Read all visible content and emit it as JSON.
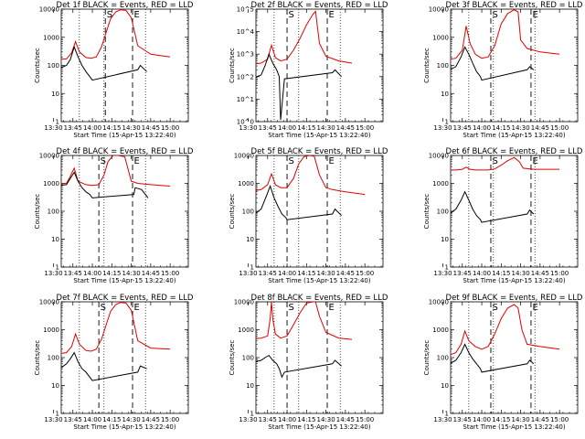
{
  "chart_data": [
    {
      "type": "line",
      "title": "Det 1f BLACK = Events, RED = LLD",
      "xlabel": "Start Time (15-Apr-15 13:22:40)",
      "ylabel": "Counts/sec",
      "yscale": "log",
      "ylim": [
        1,
        10000
      ],
      "xlim_minutes": [
        13.33,
        111.33
      ],
      "x_tick_labels": [
        "13:30",
        "13:45",
        "14:00",
        "14:15",
        "14:30",
        "14:45",
        "15:00"
      ],
      "y_tick_labels": [
        "1",
        "10",
        "100",
        "1000",
        "10000"
      ],
      "markers": [
        {
          "label": "S",
          "x": "14:10"
        },
        {
          "label": "E",
          "x": "14:31"
        }
      ],
      "series": [
        {
          "color": "#e00000",
          "x": [
            "13:30",
            "13:40",
            "13:44",
            "13:47",
            "13:50",
            "13:55",
            "13:59",
            "14:03",
            "14:07",
            "14:10",
            "14:14",
            "14:18",
            "14:22",
            "14:26",
            "14:30",
            "14:35",
            "14:45",
            "15:00"
          ],
          "values": [
            160,
            170,
            280,
            700,
            300,
            190,
            180,
            200,
            450,
            1200,
            4500,
            8000,
            9500,
            9000,
            5000,
            500,
            250,
            200
          ]
        },
        {
          "color": "#000000",
          "x": [
            "13:30",
            "13:35",
            "13:40",
            "13:43",
            "13:46",
            "13:49",
            "13:52",
            "13:55",
            "13:58",
            "14:00",
            "14:35",
            "14:37",
            "14:42"
          ],
          "values": [
            70,
            80,
            100,
            160,
            450,
            200,
            100,
            60,
            40,
            30,
            70,
            100,
            60
          ]
        }
      ]
    },
    {
      "type": "line",
      "title": "Det 2f BLACK = Events, RED = LLD",
      "xlabel": "Start Time (15-Apr-15 13:22:40)",
      "ylabel": "Counts/sec",
      "yscale": "log",
      "ylim": [
        1,
        100000
      ],
      "xlim_minutes": [
        13.33,
        111.33
      ],
      "x_tick_labels": [
        "13:30",
        "13:45",
        "14:00",
        "14:15",
        "14:30",
        "14:45",
        "15:00"
      ],
      "y_tick_labels": [
        "10^0",
        "10^1",
        "10^2",
        "10^3",
        "10^4",
        "10^5"
      ],
      "markers": [
        {
          "label": "S",
          "x": "14:00"
        },
        {
          "label": "E",
          "x": "14:31"
        }
      ],
      "series": [
        {
          "color": "#e00000",
          "x": [
            "13:30",
            "13:40",
            "13:45",
            "13:48",
            "13:51",
            "13:55",
            "14:00",
            "14:05",
            "14:10",
            "14:15",
            "14:20",
            "14:22",
            "14:25",
            "14:30",
            "14:40",
            "14:50"
          ],
          "values": [
            350,
            400,
            600,
            2500,
            700,
            500,
            600,
            1500,
            5000,
            20000,
            60000,
            80000,
            3000,
            800,
            500,
            400
          ]
        },
        {
          "color": "#000000",
          "x": [
            "13:30",
            "13:35",
            "13:40",
            "13:43",
            "13:46",
            "13:49",
            "13:52",
            "13:54",
            "13:55",
            "13:58",
            "14:35",
            "14:37",
            "14:42"
          ],
          "values": [
            80,
            90,
            120,
            300,
            1000,
            400,
            200,
            100,
            1.2,
            80,
            150,
            200,
            100
          ]
        }
      ]
    },
    {
      "type": "line",
      "title": "Det 3f BLACK = Events, RED = LLD",
      "xlabel": "Start Time (15-Apr-15 13:22:40)",
      "ylabel": "Counts/sec",
      "yscale": "log",
      "ylim": [
        1,
        10000
      ],
      "xlim_minutes": [
        13.33,
        111.33
      ],
      "x_tick_labels": [
        "13:30",
        "13:45",
        "14:00",
        "14:15",
        "14:30",
        "14:45",
        "15:00"
      ],
      "y_tick_labels": [
        "1",
        "10",
        "100",
        "1000",
        "10000"
      ],
      "markers": [
        {
          "label": "S",
          "x": "14:07"
        },
        {
          "label": "E",
          "x": "14:38"
        }
      ],
      "series": [
        {
          "color": "#e00000",
          "x": [
            "13:30",
            "13:40",
            "13:45",
            "13:48",
            "13:51",
            "13:55",
            "14:00",
            "14:05",
            "14:10",
            "14:15",
            "14:20",
            "14:25",
            "14:28",
            "14:30",
            "14:35",
            "14:45",
            "15:00"
          ],
          "values": [
            150,
            180,
            350,
            2500,
            600,
            250,
            180,
            200,
            500,
            3000,
            7000,
            9500,
            8000,
            800,
            400,
            300,
            250
          ]
        },
        {
          "color": "#000000",
          "x": [
            "13:30",
            "13:35",
            "13:40",
            "13:44",
            "13:47",
            "13:50",
            "13:53",
            "13:56",
            "13:59",
            "14:00",
            "14:35",
            "14:37",
            "14:40"
          ],
          "values": [
            60,
            70,
            90,
            200,
            450,
            250,
            120,
            60,
            40,
            30,
            70,
            90,
            70
          ]
        }
      ]
    },
    {
      "type": "line",
      "title": "Det 4f BLACK = Events, RED = LLD",
      "xlabel": "Start Time (15-Apr-15 13:22:40)",
      "ylabel": "Counts/sec",
      "yscale": "log",
      "ylim": [
        1,
        10000
      ],
      "xlim_minutes": [
        13.33,
        111.33
      ],
      "x_tick_labels": [
        "13:30",
        "13:45",
        "14:00",
        "14:15",
        "14:30",
        "14:45",
        "15:00"
      ],
      "y_tick_labels": [
        "1",
        "10",
        "100",
        "1000",
        "10000"
      ],
      "markers": [
        {
          "label": "S",
          "x": "14:05"
        },
        {
          "label": "E",
          "x": "14:31"
        }
      ],
      "series": [
        {
          "color": "#e00000",
          "x": [
            "13:30",
            "13:40",
            "13:43",
            "13:46",
            "13:49",
            "13:55",
            "14:00",
            "14:05",
            "14:09",
            "14:12",
            "14:16",
            "14:20",
            "14:25",
            "14:30",
            "14:35",
            "14:45",
            "15:00"
          ],
          "values": [
            950,
            1000,
            1800,
            3500,
            1200,
            900,
            850,
            900,
            2000,
            6000,
            10000,
            10000,
            9000,
            1200,
            1000,
            900,
            800
          ]
        },
        {
          "color": "#000000",
          "x": [
            "13:30",
            "13:35",
            "13:40",
            "13:43",
            "13:46",
            "13:49",
            "13:52",
            "13:55",
            "13:58",
            "14:00",
            "14:32",
            "14:33",
            "14:38",
            "14:43"
          ],
          "values": [
            800,
            850,
            900,
            1500,
            2500,
            1200,
            700,
            500,
            400,
            300,
            400,
            700,
            600,
            300
          ]
        }
      ]
    },
    {
      "type": "line",
      "title": "Det 5f BLACK = Events, RED = LLD",
      "xlabel": "Start Time (15-Apr-15 13:22:40)",
      "ylabel": "Counts/sec",
      "yscale": "log",
      "ylim": [
        1,
        10000
      ],
      "xlim_minutes": [
        13.33,
        111.33
      ],
      "x_tick_labels": [
        "13:30",
        "13:45",
        "14:00",
        "14:15",
        "14:30",
        "14:45",
        "15:00"
      ],
      "y_tick_labels": [
        "1",
        "10",
        "100",
        "1000",
        "10000"
      ],
      "markers": [
        {
          "label": "S",
          "x": "14:00"
        },
        {
          "label": "E",
          "x": "14:31"
        }
      ],
      "series": [
        {
          "color": "#e00000",
          "x": [
            "13:30",
            "13:40",
            "13:45",
            "13:48",
            "13:51",
            "13:55",
            "14:00",
            "14:05",
            "14:09",
            "14:13",
            "14:17",
            "14:21",
            "14:25",
            "14:30",
            "14:35",
            "14:45",
            "15:00"
          ],
          "values": [
            500,
            600,
            900,
            2200,
            900,
            700,
            700,
            1500,
            5000,
            9000,
            10000,
            9500,
            2000,
            700,
            600,
            500,
            400
          ]
        },
        {
          "color": "#000000",
          "x": [
            "13:30",
            "13:35",
            "13:40",
            "13:44",
            "13:47",
            "13:50",
            "13:53",
            "13:56",
            "13:59",
            "14:00",
            "14:35",
            "14:37",
            "14:42"
          ],
          "values": [
            60,
            80,
            120,
            350,
            800,
            300,
            150,
            80,
            60,
            50,
            80,
            120,
            70
          ]
        }
      ]
    },
    {
      "type": "line",
      "title": "Det 6f BLACK = Events, RED = LLD",
      "xlabel": "Start Time (15-Apr-15 13:22:40)",
      "ylabel": "Counts/sec",
      "yscale": "log",
      "ylim": [
        1,
        10000
      ],
      "xlim_minutes": [
        13.33,
        111.33
      ],
      "x_tick_labels": [
        "13:30",
        "13:45",
        "14:00",
        "14:15",
        "14:30",
        "14:45",
        "15:00"
      ],
      "y_tick_labels": [
        "1",
        "10",
        "100",
        "1000",
        "10000"
      ],
      "markers": [
        {
          "label": "S",
          "x": "14:07"
        },
        {
          "label": "E",
          "x": "14:38"
        }
      ],
      "series": [
        {
          "color": "#e00000",
          "x": [
            "13:30",
            "13:40",
            "13:45",
            "13:48",
            "13:51",
            "13:55",
            "14:00",
            "14:05",
            "14:10",
            "14:15",
            "14:20",
            "14:25",
            "14:29",
            "14:32",
            "14:40",
            "15:00"
          ],
          "values": [
            3000,
            3000,
            3200,
            3800,
            3200,
            3000,
            3000,
            3000,
            3300,
            4500,
            6500,
            8500,
            6000,
            3500,
            3200,
            3200
          ]
        },
        {
          "color": "#000000",
          "x": [
            "13:30",
            "13:35",
            "13:40",
            "13:44",
            "13:47",
            "13:50",
            "13:53",
            "13:56",
            "13:59",
            "14:00",
            "14:35",
            "14:37",
            "14:40"
          ],
          "values": [
            60,
            80,
            120,
            250,
            500,
            250,
            120,
            70,
            50,
            40,
            80,
            110,
            80
          ]
        }
      ]
    },
    {
      "type": "line",
      "title": "Det 7f BLACK = Events, RED = LLD",
      "xlabel": "Start Time (15-Apr-15 13:22:40)",
      "ylabel": "Counts/sec",
      "yscale": "log",
      "ylim": [
        1,
        10000
      ],
      "xlim_minutes": [
        13.33,
        111.33
      ],
      "x_tick_labels": [
        "13:30",
        "13:45",
        "14:00",
        "14:15",
        "14:30",
        "14:45",
        "15:00"
      ],
      "y_tick_labels": [
        "1",
        "10",
        "100",
        "1000",
        "10000"
      ],
      "markers": [
        {
          "label": "S",
          "x": "14:05"
        },
        {
          "label": "E",
          "x": "14:31"
        }
      ],
      "series": [
        {
          "color": "#e00000",
          "x": [
            "13:30",
            "13:40",
            "13:44",
            "13:47",
            "13:50",
            "13:55",
            "13:59",
            "14:03",
            "14:07",
            "14:10",
            "14:14",
            "14:18",
            "14:22",
            "14:26",
            "14:30",
            "14:35",
            "14:45",
            "15:00"
          ],
          "values": [
            130,
            150,
            250,
            700,
            300,
            180,
            170,
            200,
            450,
            1200,
            4500,
            8000,
            9500,
            9000,
            5000,
            400,
            220,
            200
          ]
        },
        {
          "color": "#000000",
          "x": [
            "13:30",
            "13:35",
            "13:40",
            "13:43",
            "13:46",
            "13:49",
            "13:52",
            "13:55",
            "13:58",
            "14:00",
            "14:35",
            "14:37",
            "14:42"
          ],
          "values": [
            20,
            40,
            60,
            90,
            150,
            70,
            40,
            30,
            20,
            15,
            30,
            50,
            40
          ]
        }
      ]
    },
    {
      "type": "line",
      "title": "Det 8f BLACK = Events, RED = LLD",
      "xlabel": "Start Time (15-Apr-15 13:22:40)",
      "ylabel": "Counts/sec",
      "yscale": "log",
      "ylim": [
        1,
        10000
      ],
      "xlim_minutes": [
        13.33,
        111.33
      ],
      "x_tick_labels": [
        "13:30",
        "13:45",
        "14:00",
        "14:15",
        "14:30",
        "14:45",
        "15:00"
      ],
      "y_tick_labels": [
        "1",
        "10",
        "100",
        "1000",
        "10000"
      ],
      "markers": [
        {
          "label": "S",
          "x": "14:00"
        },
        {
          "label": "E",
          "x": "14:31"
        }
      ],
      "series": [
        {
          "color": "#e00000",
          "x": [
            "13:30",
            "13:40",
            "13:45",
            "13:47",
            "13:48",
            "13:49",
            "13:51",
            "13:55",
            "14:00",
            "14:05",
            "14:10",
            "14:15",
            "14:20",
            "14:22",
            "14:25",
            "14:30",
            "14:40",
            "14:50"
          ],
          "values": [
            450,
            500,
            600,
            2500,
            10000,
            2500,
            700,
            500,
            600,
            1500,
            4000,
            9000,
            10000,
            10000,
            3000,
            800,
            500,
            450
          ]
        },
        {
          "color": "#000000",
          "x": [
            "13:30",
            "13:35",
            "13:40",
            "13:43",
            "13:46",
            "13:49",
            "13:52",
            "13:54",
            "13:56",
            "13:58",
            "14:35",
            "14:37",
            "14:42"
          ],
          "values": [
            60,
            70,
            80,
            100,
            120,
            80,
            60,
            40,
            20,
            30,
            60,
            80,
            50
          ]
        }
      ]
    },
    {
      "type": "line",
      "title": "Det 9f BLACK = Events, RED = LLD",
      "xlabel": "Start Time (15-Apr-15 13:22:40)",
      "ylabel": "Counts/sec",
      "yscale": "log",
      "ylim": [
        1,
        10000
      ],
      "xlim_minutes": [
        13.33,
        111.33
      ],
      "x_tick_labels": [
        "13:30",
        "13:45",
        "14:00",
        "14:15",
        "14:30",
        "14:45",
        "15:00"
      ],
      "y_tick_labels": [
        "1",
        "10",
        "100",
        "1000",
        "10000"
      ],
      "markers": [
        {
          "label": "S",
          "x": "14:07"
        },
        {
          "label": "E",
          "x": "14:38"
        }
      ],
      "series": [
        {
          "color": "#e00000",
          "x": [
            "13:30",
            "13:40",
            "13:44",
            "13:47",
            "13:50",
            "13:55",
            "14:00",
            "14:05",
            "14:10",
            "14:15",
            "14:20",
            "14:25",
            "14:28",
            "14:31",
            "14:35",
            "14:45",
            "15:00"
          ],
          "values": [
            100,
            150,
            300,
            900,
            400,
            250,
            200,
            250,
            700,
            2500,
            6000,
            8000,
            6000,
            1000,
            300,
            250,
            200
          ]
        },
        {
          "color": "#000000",
          "x": [
            "13:30",
            "13:35",
            "13:40",
            "13:44",
            "13:47",
            "13:50",
            "13:53",
            "13:56",
            "13:59",
            "14:00",
            "14:35",
            "14:37",
            "14:40"
          ],
          "values": [
            40,
            60,
            80,
            150,
            300,
            150,
            90,
            60,
            40,
            30,
            60,
            80,
            60
          ]
        }
      ]
    }
  ]
}
